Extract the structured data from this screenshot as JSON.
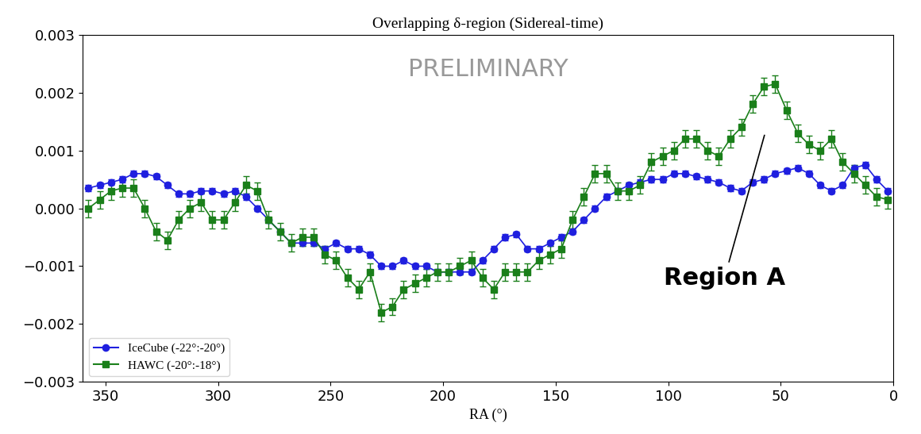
{
  "chart_data": {
    "type": "line",
    "title": "Overlapping δ-region (Sidereal-time)",
    "x_label": "RA (°)",
    "annotations": [
      "PRELIMINARY",
      "Region A"
    ],
    "x": [
      357.5,
      352.5,
      347.5,
      342.5,
      337.5,
      332.5,
      327.5,
      322.5,
      317.5,
      312.5,
      307.5,
      302.5,
      297.5,
      292.5,
      287.5,
      282.5,
      277.5,
      272.5,
      267.5,
      262.5,
      257.5,
      252.5,
      247.5,
      242.5,
      237.5,
      232.5,
      227.5,
      222.5,
      217.5,
      212.5,
      207.5,
      202.5,
      197.5,
      192.5,
      187.5,
      182.5,
      177.5,
      172.5,
      167.5,
      162.5,
      157.5,
      152.5,
      147.5,
      142.5,
      137.5,
      132.5,
      127.5,
      122.5,
      117.5,
      112.5,
      107.5,
      102.5,
      97.5,
      92.5,
      87.5,
      82.5,
      77.5,
      72.5,
      67.5,
      62.5,
      57.5,
      52.5,
      47.5,
      42.5,
      37.5,
      32.5,
      27.5,
      22.5,
      17.5,
      12.5,
      7.5,
      2.5
    ],
    "series": [
      {
        "name": "IceCube (-22°:-20°)",
        "color": "#1f1fdf",
        "marker": "circle",
        "line_style": "solid",
        "error": 5e-05,
        "values": [
          0.00035,
          0.0004,
          0.00045,
          0.0005,
          0.0006,
          0.0006,
          0.00055,
          0.0004,
          0.00025,
          0.00025,
          0.0003,
          0.0003,
          0.00025,
          0.0003,
          0.0002,
          0.0,
          -0.0002,
          -0.0004,
          -0.0006,
          -0.0006,
          -0.0006,
          -0.0007,
          -0.0006,
          -0.0007,
          -0.0007,
          -0.0008,
          -0.001,
          -0.001,
          -0.0009,
          -0.001,
          -0.001,
          -0.0011,
          -0.0011,
          -0.0011,
          -0.0011,
          -0.0009,
          -0.0007,
          -0.0005,
          -0.00045,
          -0.0007,
          -0.0007,
          -0.0006,
          -0.0005,
          -0.0004,
          -0.0002,
          0.0,
          0.0002,
          0.0003,
          0.0004,
          0.00045,
          0.0005,
          0.0005,
          0.0006,
          0.0006,
          0.00055,
          0.0005,
          0.00045,
          0.00035,
          0.0003,
          0.00045,
          0.0005,
          0.0006,
          0.00065,
          0.0007,
          0.0006,
          0.0004,
          0.0003,
          0.0004,
          0.0007,
          0.00075,
          0.0005,
          0.0003
        ]
      },
      {
        "name": "HAWC (-20°:-18°)",
        "color": "#1a7f1a",
        "marker": "square",
        "line_style": "solid",
        "error": 0.00015,
        "values": [
          0.0,
          0.00015,
          0.0003,
          0.00035,
          0.00035,
          0.0,
          -0.0004,
          -0.00055,
          -0.0002,
          0.0,
          0.0001,
          -0.0002,
          -0.0002,
          0.0001,
          0.0004,
          0.0003,
          -0.0002,
          -0.0004,
          -0.0006,
          -0.0005,
          -0.0005,
          -0.0008,
          -0.0009,
          -0.0012,
          -0.0014,
          -0.0011,
          -0.0018,
          -0.0017,
          -0.0014,
          -0.0013,
          -0.0012,
          -0.0011,
          -0.0011,
          -0.001,
          -0.0009,
          -0.0012,
          -0.0014,
          -0.0011,
          -0.0011,
          -0.0011,
          -0.0009,
          -0.0008,
          -0.0007,
          -0.0002,
          0.0002,
          0.0006,
          0.0006,
          0.0003,
          0.0003,
          0.0004,
          0.0008,
          0.0009,
          0.001,
          0.0012,
          0.0012,
          0.001,
          0.0009,
          0.0012,
          0.0014,
          0.0018,
          0.0021,
          0.00215,
          0.0017,
          0.0013,
          0.0011,
          0.001,
          0.0012,
          0.0008,
          0.0006,
          0.0004,
          0.0002,
          0.00015
        ]
      }
    ],
    "xlim": [
      360,
      0
    ],
    "xticks": [
      350,
      300,
      250,
      200,
      150,
      100,
      50,
      0
    ],
    "ylim": [
      -0.003,
      0.003
    ],
    "yticks": [
      {
        "value": -0.003,
        "label": "−0.003"
      },
      {
        "value": -0.002,
        "label": "−0.002"
      },
      {
        "value": -0.001,
        "label": "−0.001"
      },
      {
        "value": 0,
        "label": "0.000"
      },
      {
        "value": 0.001,
        "label": "0.001"
      },
      {
        "value": 0.002,
        "label": "0.002"
      },
      {
        "value": 0.003,
        "label": "0.003"
      }
    ],
    "legend": "lower left",
    "grid": false
  }
}
